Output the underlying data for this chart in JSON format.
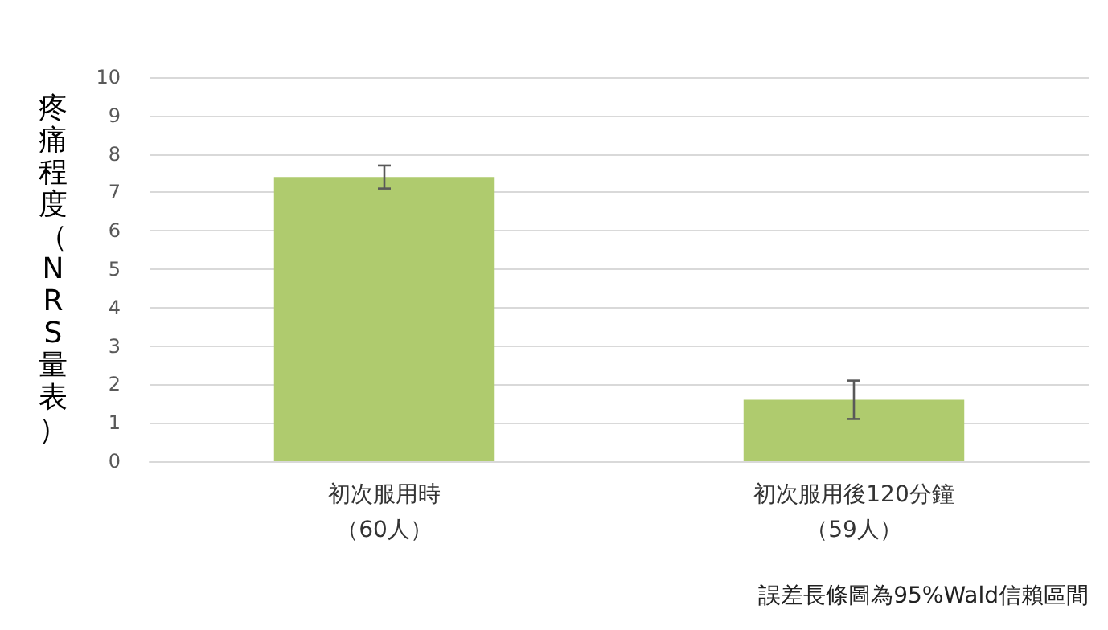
{
  "chart_data": {
    "type": "bar",
    "ylabel": "疼痛程度（NRS量表）",
    "categories": [
      "初次服用時（60人）",
      "初次服用後120分鐘（59人）"
    ],
    "values": [
      7.4,
      1.6
    ],
    "errors": [
      0.3,
      0.5
    ],
    "color": "#afcb6e",
    "ylim": [
      0,
      10
    ],
    "yticks": [
      0,
      1,
      2,
      3,
      4,
      5,
      6,
      7,
      8,
      9,
      10
    ],
    "grid": "y",
    "annotations": [
      "誤差長條圖為95%Wald信賴區間"
    ]
  }
}
